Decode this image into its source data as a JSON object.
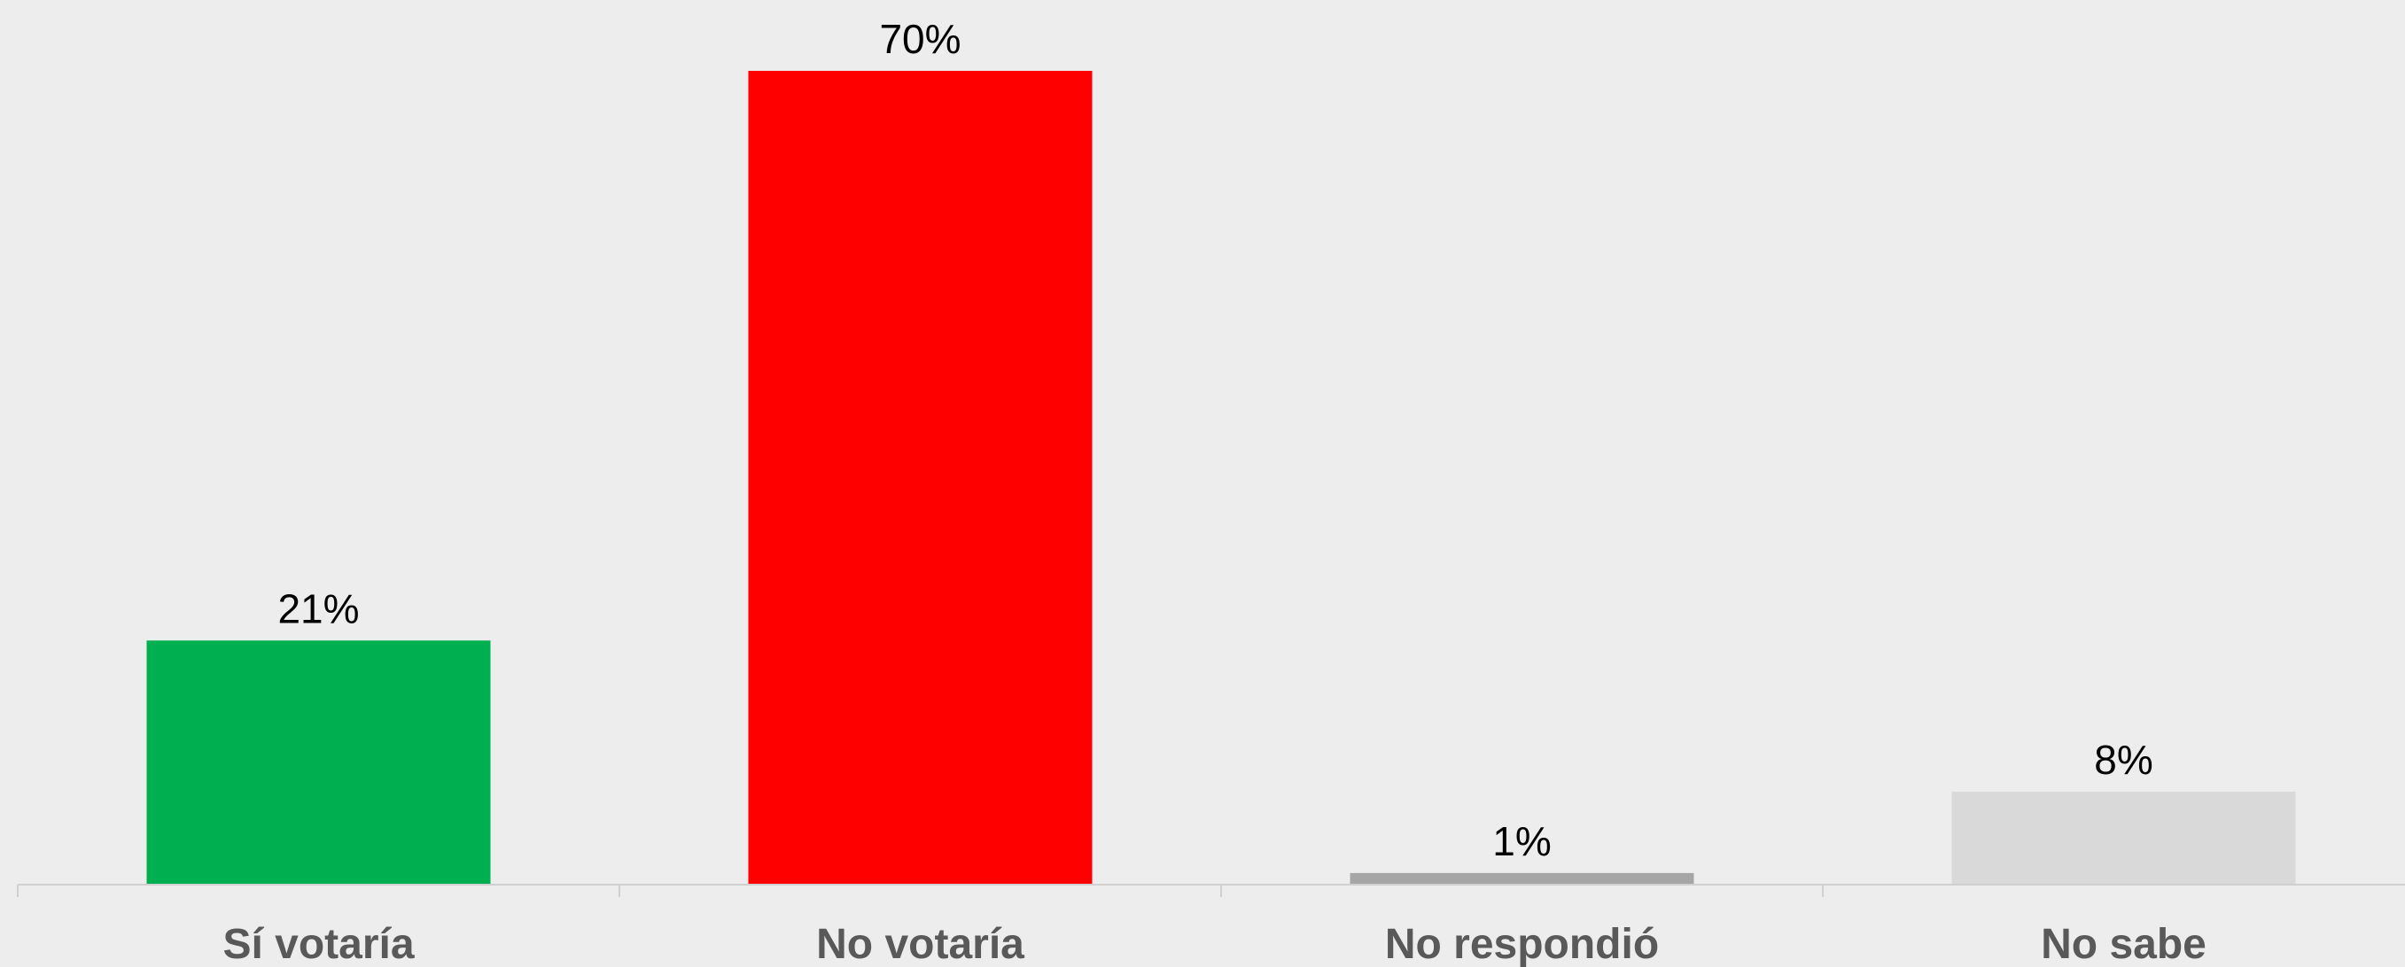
{
  "chart_data": {
    "type": "bar",
    "categories": [
      "Sí votaría",
      "No votaría",
      "No respondió",
      "No sabe"
    ],
    "values": [
      21,
      70,
      1,
      8
    ],
    "value_labels": [
      "21%",
      "70%",
      "1%",
      "8%"
    ],
    "colors": [
      "#00B050",
      "#FF0000",
      "#A6A6A6",
      "#D9D9D9"
    ],
    "title": "",
    "xlabel": "",
    "ylabel": "",
    "ylim": [
      0,
      70
    ],
    "grid": false,
    "legend": "none"
  }
}
